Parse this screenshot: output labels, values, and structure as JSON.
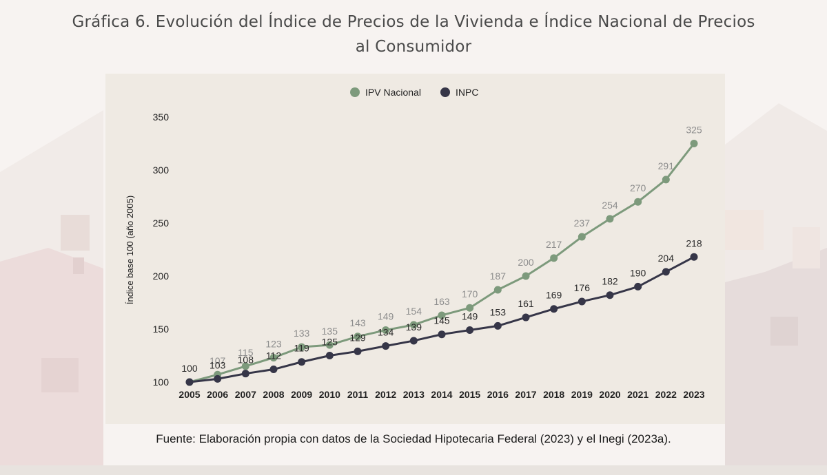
{
  "page": {
    "title_line1": "Gráfica 6. Evolución del Índice de Precios de la Vivienda e Índice Nacional de Precios",
    "title_line2": "al Consumidor",
    "source": "Fuente: Elaboración propia con datos de la Sociedad Hipotecaria Federal (2023) y el Inegi (2023a)."
  },
  "colors": {
    "ipv": "#7d9a7c",
    "inpc": "#363648",
    "ipv_label": "#8d8d8d",
    "inpc_label": "#2a2a2a",
    "axis_text": "#222222"
  },
  "chart_data": {
    "type": "line",
    "title": "Gráfica 6. Evolución del Índice de Precios de la Vivienda e Índice Nacional de Precios al Consumidor",
    "xlabel": "",
    "ylabel": "Índice base 100 (año 2005)",
    "ylim": [
      100,
      350
    ],
    "yticks": [
      100,
      150,
      200,
      250,
      300,
      350
    ],
    "grid": false,
    "legend_position": "top-center",
    "categories": [
      "2005",
      "2006",
      "2007",
      "2008",
      "2009",
      "2010",
      "2011",
      "2012",
      "2013",
      "2014",
      "2015",
      "2016",
      "2017",
      "2018",
      "2019",
      "2020",
      "2021",
      "2022",
      "2023"
    ],
    "series": [
      {
        "name": "IPV Nacional",
        "values": [
          100,
          107,
          115,
          123,
          133,
          135,
          143,
          149,
          154,
          163,
          170,
          187,
          200,
          217,
          237,
          254,
          270,
          291,
          325
        ]
      },
      {
        "name": "INPC",
        "values": [
          100,
          103,
          108,
          112,
          119,
          125,
          129,
          134,
          139,
          145,
          149,
          153,
          161,
          169,
          176,
          182,
          190,
          204,
          218
        ]
      }
    ]
  }
}
